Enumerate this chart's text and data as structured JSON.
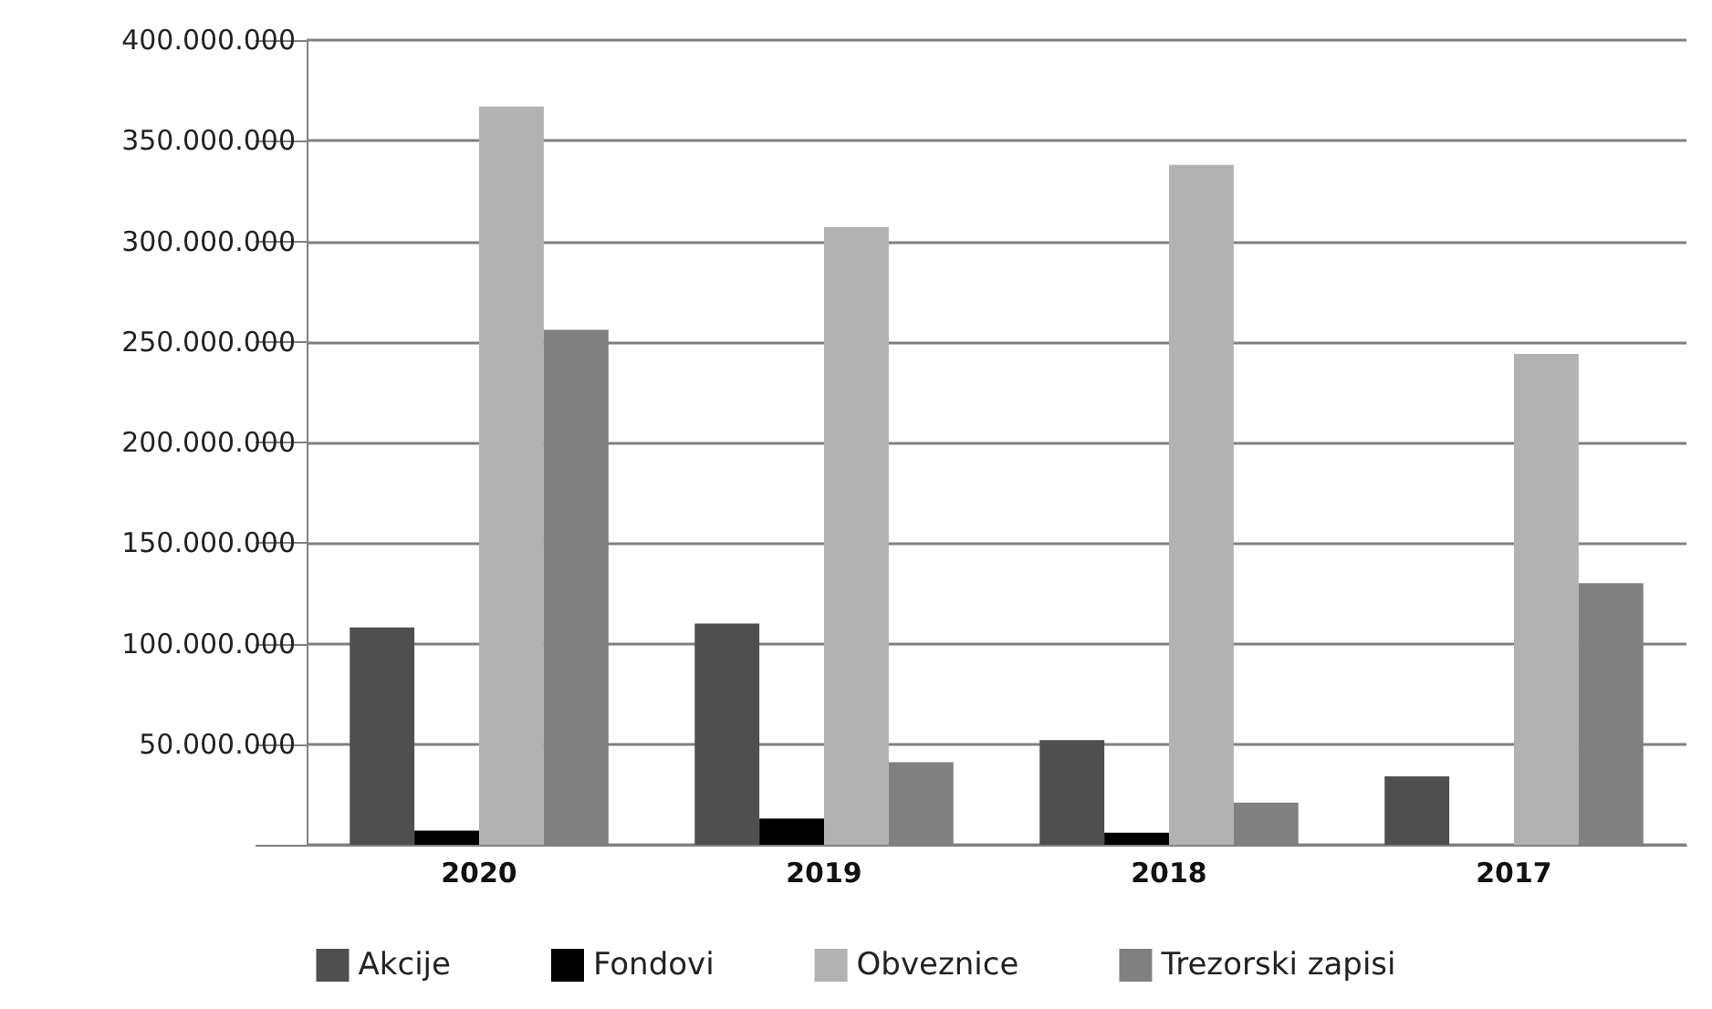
{
  "chart_data": {
    "type": "bar",
    "categories": [
      "2020",
      "2019",
      "2018",
      "2017"
    ],
    "series": [
      {
        "name": "Akcije",
        "color": "#4f4f4f",
        "values": [
          108000000,
          110000000,
          52000000,
          34000000
        ]
      },
      {
        "name": "Fondovi",
        "color": "#000000",
        "values": [
          7000000,
          13000000,
          6000000,
          0
        ]
      },
      {
        "name": "Obveznice",
        "color": "#b2b2b2",
        "values": [
          367000000,
          307000000,
          338000000,
          244000000
        ]
      },
      {
        "name": "Trezorski zapisi",
        "color": "#808080",
        "values": [
          256000000,
          41000000,
          21000000,
          130000000
        ]
      }
    ],
    "ylim": [
      0,
      400000000
    ],
    "yticks": [
      {
        "value": 0,
        "label": null
      },
      {
        "value": 50000000,
        "label": "50.000.000"
      },
      {
        "value": 100000000,
        "label": "100.000.000"
      },
      {
        "value": 150000000,
        "label": "150.000.000"
      },
      {
        "value": 200000000,
        "label": "200.000.000"
      },
      {
        "value": 250000000,
        "label": "250.000.000"
      },
      {
        "value": 300000000,
        "label": "300.000.000"
      },
      {
        "value": 350000000,
        "label": "350.000.000"
      },
      {
        "value": 400000000,
        "label": "400.000.000"
      }
    ],
    "grid": "y",
    "legend": "bottom"
  }
}
